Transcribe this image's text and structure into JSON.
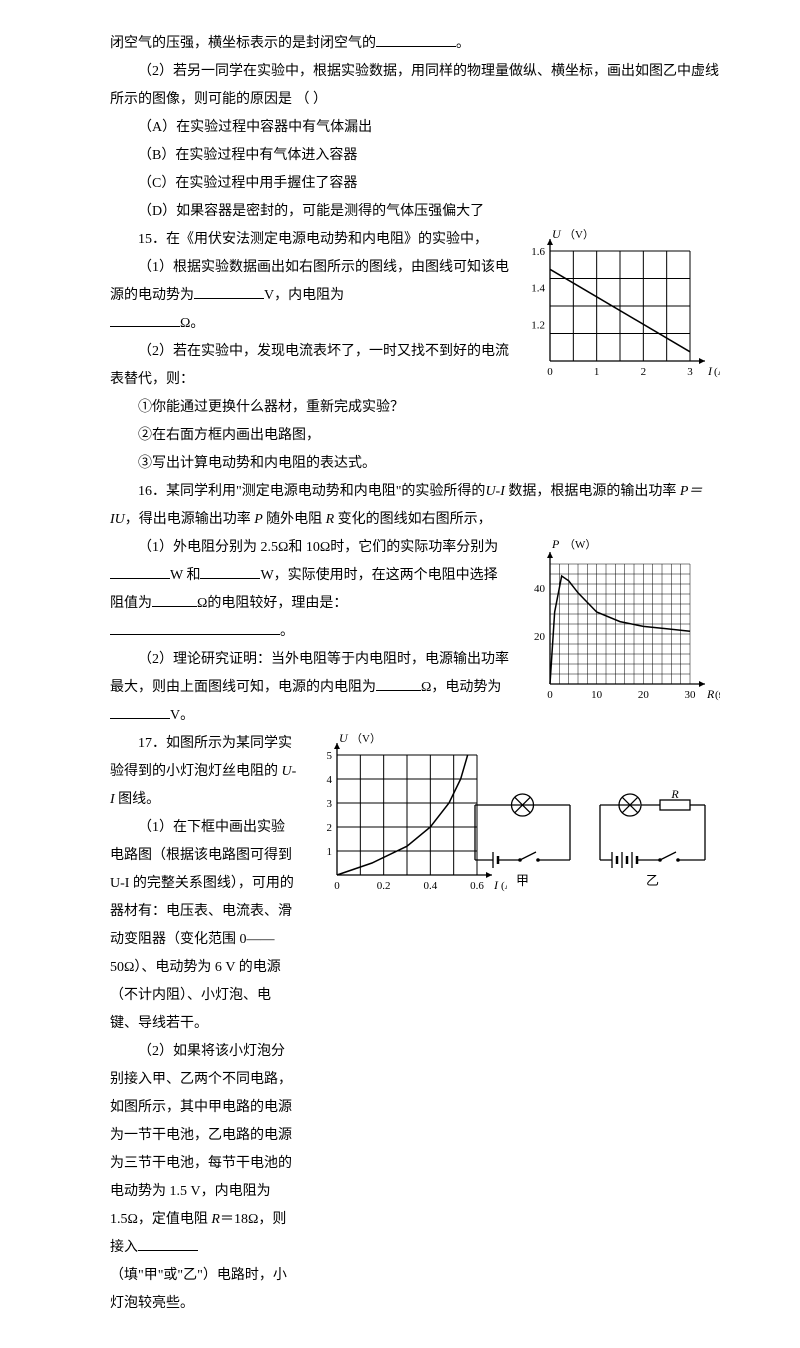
{
  "intro": {
    "line1_a": "闭空气的压强，横坐标表示的是封闭空气的",
    "line1_b": "。",
    "line2": "（2）若另一同学在实验中，根据实验数据，用同样的物理量做纵、横坐标，画出如图乙中虚线所示的图像，则可能的原因是   （        ）",
    "optA": "（A）在实验过程中容器中有气体漏出",
    "optB": "（B）在实验过程中有气体进入容器",
    "optC": "（C）在实验过程中用手握住了容器",
    "optD": "（D）如果容器是密封的，可能是测得的气体压强偏大了"
  },
  "q15": {
    "title": "15．在《用伏安法测定电源电动势和内电阻》的实验中，",
    "p1_a": "（1）根据实验数据画出如右图所示的图线，由图线可知该电源的电动势为",
    "p1_b": "V，内电阻为",
    "p1_c": "Ω。",
    "p2": "（2）若在实验中，发现电流表坏了，一时又找不到好的电流表替代，则：",
    "p3": "①你能通过更换什么器材，重新完成实验？",
    "p4": "②在右面方框内画出电路图，",
    "p5": "③写出计算电动势和内电阻的表达式。",
    "chart": {
      "ylabel": "U",
      "yunit": "（V）",
      "xlabel": "I",
      "xunit": "(A)",
      "ylim": [
        1.0,
        1.6
      ],
      "ytick_step": 0.2,
      "yticks": [
        "1.2",
        "1.4",
        "1.6"
      ],
      "xlim": [
        0,
        3
      ],
      "xtick_step": 1,
      "xticks": [
        "0",
        "1",
        "2",
        "3"
      ],
      "line": [
        [
          0,
          1.5
        ],
        [
          3,
          1.05
        ]
      ],
      "grid_cols": 6,
      "grid_rows": 4,
      "axis_color": "#000",
      "grid_color": "#000",
      "line_color": "#000"
    }
  },
  "q16": {
    "p1_a": "16．某同学利用\"测定电源电动势和内电阻\"的实验所得的",
    "p1_b": "数据，根据电源的输出功率",
    "p1_c": "，得出电源输出功率",
    "p1_d": "随外电阻",
    "p1_e": "变化的图线如右图所示，",
    "p2_a": "（1）外电阻分别为 2.5Ω和 10Ω时，它们的实际功率分别为",
    "p2_b": "W 和",
    "p2_c": "W，实际使用时，在这两个电阻中选择阻值为",
    "p2_d": "Ω的电阻较好，理由是：",
    "p2_e": "。",
    "p3_a": "（2）理论研究证明：当外电阻等于内电阻时，电源输出功率最大，则由上面图线可知，电源的内电阻为",
    "p3_b": "Ω，电动势为",
    "p3_c": "V。",
    "chart": {
      "ylabel": "P",
      "yunit": "（W）",
      "xlabel": "R",
      "xunit": "(Ω)",
      "ylim": [
        0,
        50
      ],
      "yticks": [
        "20",
        "40"
      ],
      "xlim": [
        0,
        30
      ],
      "xticks": [
        "0",
        "10",
        "20",
        "30"
      ],
      "grid_cols_minor": 15,
      "grid_rows_minor": 12,
      "curve": [
        [
          0,
          0
        ],
        [
          1,
          30
        ],
        [
          2.5,
          45
        ],
        [
          4,
          43
        ],
        [
          6,
          38
        ],
        [
          10,
          30
        ],
        [
          15,
          26
        ],
        [
          20,
          24
        ],
        [
          25,
          23
        ],
        [
          30,
          22
        ]
      ],
      "axis_color": "#000",
      "grid_color": "#000",
      "line_color": "#000"
    }
  },
  "q17": {
    "p1_a": "17．如图所示为某同学实验得到的小灯泡灯丝电阻的",
    "p1_b": "图线。",
    "p2": "（1）在下框中画出实验电路图（根据该电路图可得到 U-I 的完整关系图线），可用的器材有：电压表、电流表、滑动变阻器（变化范围 0——50Ω）、电动势为 6  V 的电源（不计内阻）、小灯泡、电键、导线若干。",
    "p3_a": "（2）如果将该小灯泡分别接入甲、乙两个不同电路，如图所示，其中甲电路的电源为一节干电池，乙电路的电源为三节干电池，每节干电池的电动势为 1.5  V，内电阻为 1.5Ω，定值电阻 ",
    "p3_b": "＝18Ω，则接入",
    "p3_c": "（填\"甲\"或\"乙\"）电路时，小灯泡较亮些。",
    "chart": {
      "ylabel": "U",
      "yunit": "（V）",
      "xlabel": "I",
      "xunit": "(A)",
      "ylim": [
        0,
        5
      ],
      "yticks": [
        "1",
        "2",
        "3",
        "4",
        "5"
      ],
      "xlim": [
        0,
        0.6
      ],
      "xticks": [
        "0",
        "0.2",
        "0.4",
        "0.6"
      ],
      "grid_cols": 6,
      "grid_rows": 5,
      "curve": [
        [
          0,
          0
        ],
        [
          0.15,
          0.5
        ],
        [
          0.3,
          1.2
        ],
        [
          0.4,
          2.0
        ],
        [
          0.48,
          3.0
        ],
        [
          0.53,
          4.0
        ],
        [
          0.56,
          5.0
        ]
      ],
      "axis_color": "#000",
      "grid_color": "#000",
      "line_color": "#000"
    },
    "circuits": {
      "left_label": "甲",
      "right_label": "乙",
      "R_label": "R"
    }
  }
}
